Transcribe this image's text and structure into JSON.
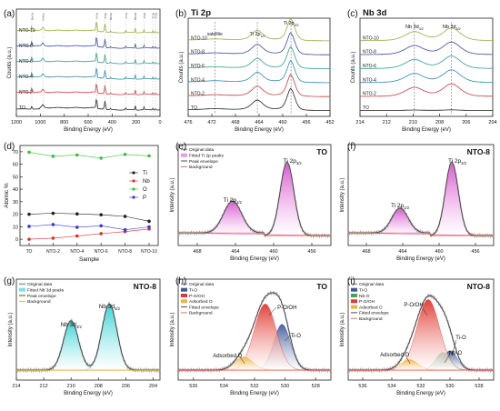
{
  "figure": {
    "panel_letters": [
      "(a)",
      "(b)",
      "(c)",
      "(d)",
      "(e)",
      "(f)",
      "(g)",
      "(h)",
      "(i)"
    ]
  },
  "chart_data": [
    {
      "id": "a",
      "type": "line",
      "title": "",
      "xlabel": "Binding Energy (eV)",
      "ylabel": "Counts (a.u.)",
      "xticks": [
        1200,
        1000,
        800,
        600,
        400,
        200,
        0
      ],
      "xlim": [
        1200,
        0
      ],
      "series_labels": [
        "NTO-10",
        "NTO-8",
        "NTO-6",
        "NTO-4",
        "NTO-2",
        "TO"
      ],
      "series_colors": [
        "#9aab3d",
        "#3a4aa0",
        "#2f9e8c",
        "#2c8ab2",
        "#cc3b3b",
        "#222222"
      ],
      "peaks_eV": [
        1071,
        978,
        530,
        459,
        413,
        285,
        207,
        133,
        60,
        37
      ],
      "peak_labels": [
        "Na 1s",
        "O KLL",
        "O 1s",
        "Ti 2p",
        "Nb 3p",
        "C 1s",
        "Nb 3d",
        "P 2p",
        "Ti 3s",
        "Ti 3p"
      ]
    },
    {
      "id": "b",
      "type": "line",
      "title": "Ti 2p",
      "xlabel": "Binding Energy (eV)",
      "ylabel": "Counts (a.u.)",
      "xticks": [
        476,
        472,
        468,
        464,
        460,
        456,
        452
      ],
      "xlim": [
        476,
        452
      ],
      "series_labels": [
        "NTO-10",
        "NTO-8",
        "NTO-6",
        "NTO-4",
        "NTO-2",
        "TO"
      ],
      "series_colors": [
        "#9aab3d",
        "#3a4aa0",
        "#2f9e8c",
        "#2c8ab2",
        "#cc3b3b",
        "#222222"
      ],
      "annotations": [
        "satellite",
        "Ti 2p1/2",
        "Ti 2p3/2"
      ],
      "peak_positions_eV": [
        471.5,
        464.3,
        458.6
      ]
    },
    {
      "id": "c",
      "type": "line",
      "title": "Nb 3d",
      "xlabel": "Binding Energy (eV)",
      "ylabel": "Counts (a.u.)",
      "xticks": [
        214,
        212,
        210,
        208,
        206,
        204
      ],
      "xlim": [
        214,
        204
      ],
      "series_labels": [
        "NTO-10",
        "NTO-8",
        "NTO-6",
        "NTO-4",
        "NTO-2",
        "TO"
      ],
      "series_colors": [
        "#9aab3d",
        "#3a4aa0",
        "#2f9e8c",
        "#2c8ab2",
        "#cc3b3b",
        "#222222"
      ],
      "annotations": [
        "Nb 3d3/2",
        "Nb 3d5/2"
      ],
      "peak_positions_eV": [
        209.9,
        207.1
      ]
    },
    {
      "id": "d",
      "type": "line",
      "xlabel": "Sample",
      "ylabel": "Atomic %",
      "categories": [
        "TO",
        "NTO-2",
        "NTO-4",
        "NTO-6",
        "NTO-8",
        "NTO-10"
      ],
      "ylim": [
        -5,
        75
      ],
      "yticks": [
        0,
        10,
        20,
        30,
        40,
        50,
        60,
        70
      ],
      "legend_position": "center-right",
      "series": [
        {
          "name": "Ti",
          "color": "#222222",
          "values": [
            20,
            20.8,
            20.3,
            19.6,
            18.3,
            14.4
          ]
        },
        {
          "name": "Nb",
          "color": "#d9322b",
          "values": [
            0,
            0.9,
            2.6,
            4.5,
            6.1,
            8.2
          ]
        },
        {
          "name": "O",
          "color": "#3fbf3f",
          "values": [
            69.6,
            66.4,
            67.4,
            64.9,
            67.9,
            66.7
          ]
        },
        {
          "name": "P",
          "color": "#3a3ad8",
          "values": [
            10.3,
            11.8,
            9.6,
            10.8,
            7.6,
            9.9
          ]
        }
      ]
    },
    {
      "id": "e",
      "type": "area",
      "title": "TO",
      "xlabel": "Binding Energy (eV)",
      "ylabel": "Intensity (a.u.)",
      "xticks": [
        468,
        464,
        460,
        456
      ],
      "xlim": [
        470,
        454
      ],
      "legend": [
        "Original data",
        "Fitted Ti 2p peaks",
        "Peak envelope",
        "Background"
      ],
      "peaks": [
        {
          "label": "Ti 2p1/2",
          "center": 464.3,
          "height": 0.36,
          "width": 0.95
        },
        {
          "label": "Ti 2p3/2",
          "center": 458.6,
          "height": 0.83,
          "width": 0.72
        }
      ]
    },
    {
      "id": "f",
      "type": "area",
      "title": "NTO-8",
      "xlabel": "Binding Energy (eV)",
      "ylabel": "Intensity (a.u.)",
      "xticks": [
        468,
        464,
        460,
        456
      ],
      "xlim": [
        470,
        454
      ],
      "peaks": [
        {
          "label": "Ti 2p1/2",
          "center": 464.3,
          "height": 0.28,
          "width": 0.9
        },
        {
          "label": "Ti 2p3/2",
          "center": 458.6,
          "height": 0.83,
          "width": 0.72
        }
      ]
    },
    {
      "id": "g",
      "type": "area",
      "title": "NTO-8",
      "xlabel": "Binding Energy (eV)",
      "ylabel": "Intensity (a.u.)",
      "xticks": [
        214,
        212,
        210,
        208,
        206,
        204
      ],
      "xlim": [
        214,
        203.5
      ],
      "legend": [
        "Original data",
        "Fitted Nb 3d peaks",
        "Peak envelope",
        "Background"
      ],
      "peaks": [
        {
          "label": "Nb 3d3/2",
          "center": 210.0,
          "height": 0.56,
          "width": 0.55
        },
        {
          "label": "Nb 3d5/2",
          "center": 207.2,
          "height": 0.75,
          "width": 0.55
        }
      ]
    },
    {
      "id": "h",
      "type": "area",
      "title": "TO",
      "xlabel": "Binding Energy (eV)",
      "ylabel": "Intensity (a.u.)",
      "xticks": [
        536,
        534,
        532,
        530,
        528
      ],
      "xlim": [
        537,
        527
      ],
      "legend": [
        "Original data",
        "Ti-O",
        "P-O/OH",
        "Adsorbed O",
        "Fitted envelope",
        "Background"
      ],
      "peaks": [
        {
          "label": "Ti-O",
          "center": 530.2,
          "height": 0.52,
          "width": 0.55
        },
        {
          "label": "P-O/OH",
          "center": 531.3,
          "height": 0.75,
          "width": 0.72
        },
        {
          "label": "Adsorbed O",
          "center": 532.7,
          "height": 0.15,
          "width": 0.6
        }
      ]
    },
    {
      "id": "i",
      "type": "area",
      "title": "NTO-8",
      "xlabel": "Binding Energy (eV)",
      "ylabel": "Intensity (a.u.)",
      "xticks": [
        536,
        534,
        532,
        530,
        528
      ],
      "xlim": [
        537,
        527
      ],
      "legend": [
        "Original data",
        "Ti-O",
        "Nb-O",
        "P-O/OH",
        "Adsorbed O",
        "Fitted envelope",
        "Background"
      ],
      "peaks": [
        {
          "label": "Ti-O",
          "center": 530.0,
          "height": 0.22,
          "width": 0.5
        },
        {
          "label": "Nb-O",
          "center": 530.5,
          "height": 0.2,
          "width": 0.5
        },
        {
          "label": "P-O/OH",
          "center": 531.5,
          "height": 0.8,
          "width": 0.78
        },
        {
          "label": "Adsorbed O",
          "center": 532.8,
          "height": 0.12,
          "width": 0.6
        }
      ]
    }
  ]
}
